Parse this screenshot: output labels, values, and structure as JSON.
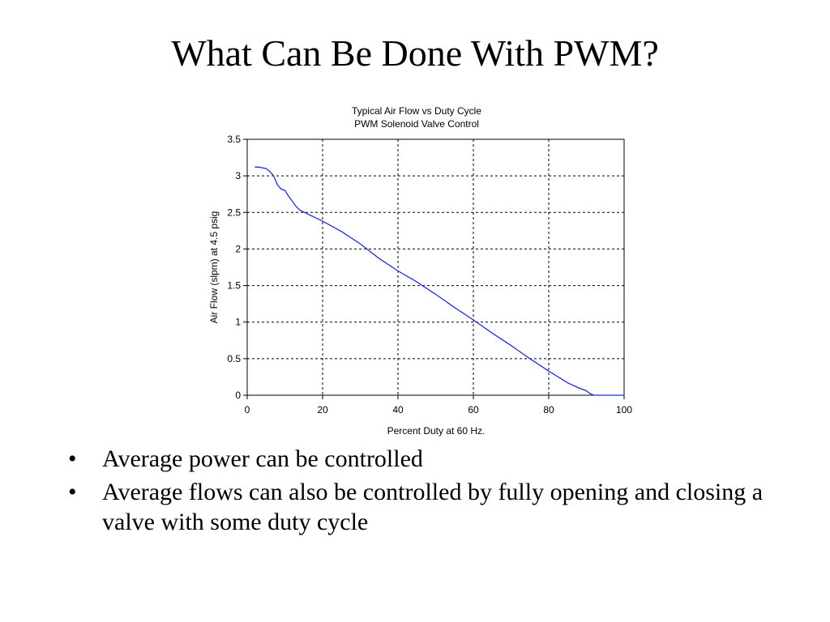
{
  "slide": {
    "title": "What Can Be Done With PWM?",
    "bullets": [
      "Average power can be controlled",
      "Average flows can also be controlled by fully opening and closing a valve with some duty cycle"
    ],
    "bullet_glyph": "•"
  },
  "chart_data": {
    "type": "line",
    "title": "Typical Air Flow vs Duty Cycle",
    "subtitle": "PWM Solenoid Valve Control",
    "xlabel": "Percent Duty at 60 Hz.",
    "ylabel": "Air Flow (slpm) at 4.5 psig",
    "xlim": [
      0,
      100
    ],
    "ylim": [
      0,
      3.5
    ],
    "xticks": [
      0,
      20,
      40,
      60,
      80,
      100
    ],
    "yticks": [
      0,
      0.5,
      1,
      1.5,
      2,
      2.5,
      3,
      3.5
    ],
    "ytick_labels": [
      "0",
      "0.5",
      "1",
      "1.5",
      "2",
      "2.5",
      "3",
      "3.5"
    ],
    "grid": true,
    "grid_style": "dashed",
    "line_color": "#1f2fd6",
    "series": [
      {
        "x": [
          2,
          3,
          4,
          5,
          6,
          7,
          8,
          9,
          10,
          11,
          12,
          13,
          14,
          16,
          18,
          20,
          25,
          30,
          35,
          40,
          45,
          50,
          55,
          60,
          65,
          70,
          75,
          80,
          85,
          88,
          90,
          91,
          92,
          95,
          100
        ],
        "y": [
          3.12,
          3.12,
          3.11,
          3.1,
          3.06,
          3.0,
          2.88,
          2.82,
          2.8,
          2.72,
          2.65,
          2.58,
          2.53,
          2.48,
          2.43,
          2.38,
          2.24,
          2.07,
          1.87,
          1.7,
          1.55,
          1.38,
          1.2,
          1.03,
          0.85,
          0.68,
          0.5,
          0.33,
          0.17,
          0.1,
          0.06,
          0.02,
          0.0,
          0.0,
          0.0
        ]
      }
    ]
  }
}
